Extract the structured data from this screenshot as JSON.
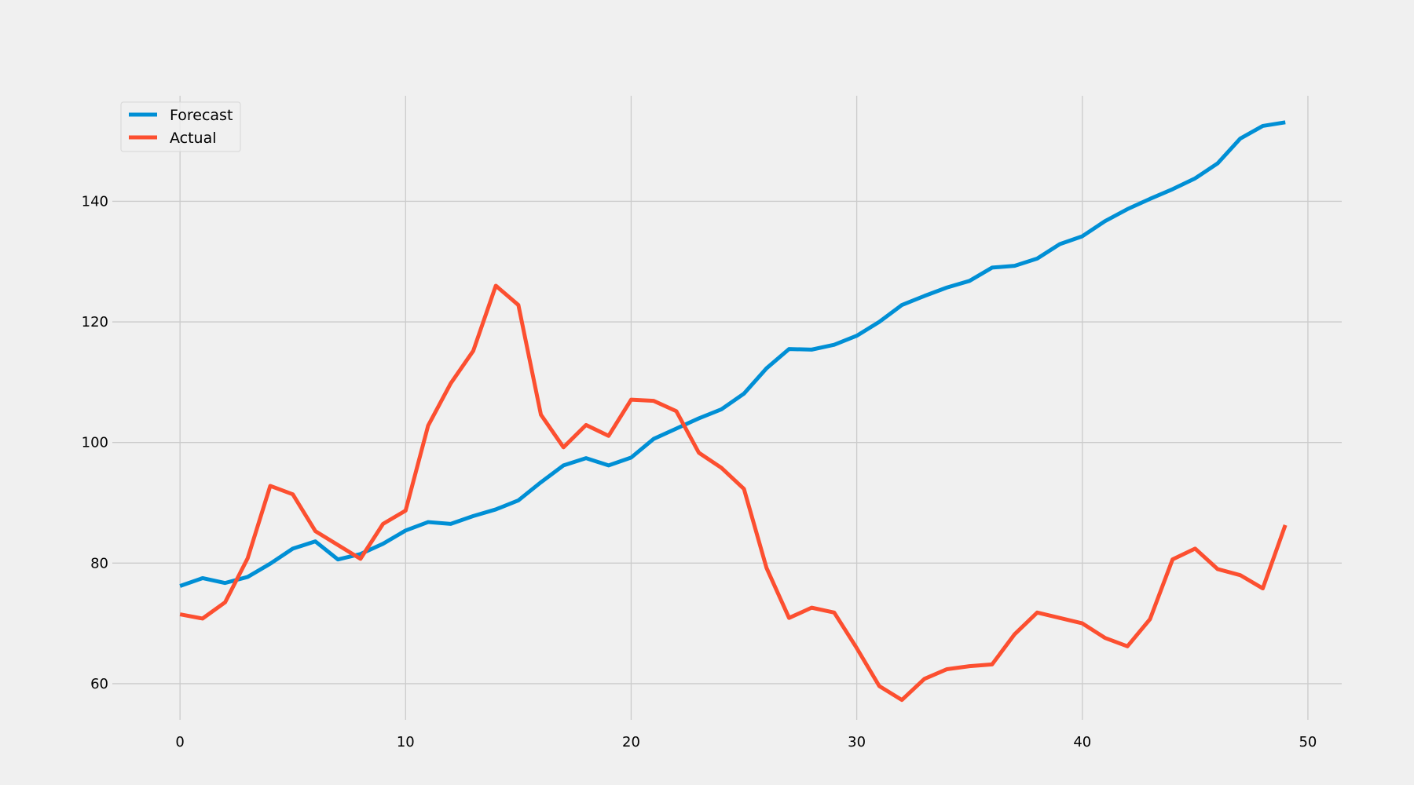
{
  "chart_data": {
    "type": "line",
    "title": "",
    "xlabel": "",
    "ylabel": "",
    "xlim": [
      -3,
      51.5
    ],
    "ylim": [
      54,
      157.5
    ],
    "xticks": [
      0,
      10,
      20,
      30,
      40,
      50
    ],
    "yticks": [
      60,
      80,
      100,
      120,
      140
    ],
    "grid": true,
    "legend": "upper left",
    "x": [
      0,
      1,
      2,
      3,
      4,
      5,
      6,
      7,
      8,
      9,
      10,
      11,
      12,
      13,
      14,
      15,
      16,
      17,
      18,
      19,
      20,
      21,
      22,
      23,
      24,
      25,
      26,
      27,
      28,
      29,
      30,
      31,
      32,
      33,
      34,
      35,
      36,
      37,
      38,
      39,
      40,
      41,
      42,
      43,
      44,
      45,
      46,
      47,
      48,
      49
    ],
    "series": [
      {
        "name": "Forecast",
        "color": "#008fd5",
        "values": [
          76.2,
          77.5,
          76.7,
          77.7,
          79.9,
          82.4,
          83.6,
          80.6,
          81.5,
          83.2,
          85.4,
          86.8,
          86.5,
          87.8,
          88.9,
          90.4,
          93.4,
          96.2,
          97.4,
          96.2,
          97.5,
          100.6,
          102.3,
          104.0,
          105.5,
          108.1,
          112.3,
          115.5,
          115.4,
          116.2,
          117.7,
          120.0,
          122.8,
          124.3,
          125.7,
          126.8,
          129.0,
          129.3,
          130.5,
          132.9,
          134.2,
          136.7,
          138.7,
          140.4,
          142.0,
          143.8,
          146.3,
          150.4,
          152.5,
          153.1
        ]
      },
      {
        "name": "Actual",
        "color": "#fc4f30",
        "values": [
          71.5,
          70.8,
          73.5,
          80.8,
          92.8,
          91.4,
          85.3,
          83.0,
          80.7,
          86.5,
          88.7,
          102.8,
          109.8,
          115.2,
          126.0,
          122.8,
          104.6,
          99.2,
          102.9,
          101.1,
          107.1,
          106.9,
          105.2,
          98.3,
          95.8,
          92.3,
          79.2,
          70.9,
          72.6,
          71.8,
          65.9,
          59.6,
          57.3,
          60.8,
          62.4,
          62.9,
          63.2,
          68.2,
          71.8,
          70.9,
          70.0,
          67.6,
          66.2,
          70.7,
          80.6,
          82.4,
          79.0,
          78.0,
          75.8,
          86.3
        ]
      }
    ]
  }
}
